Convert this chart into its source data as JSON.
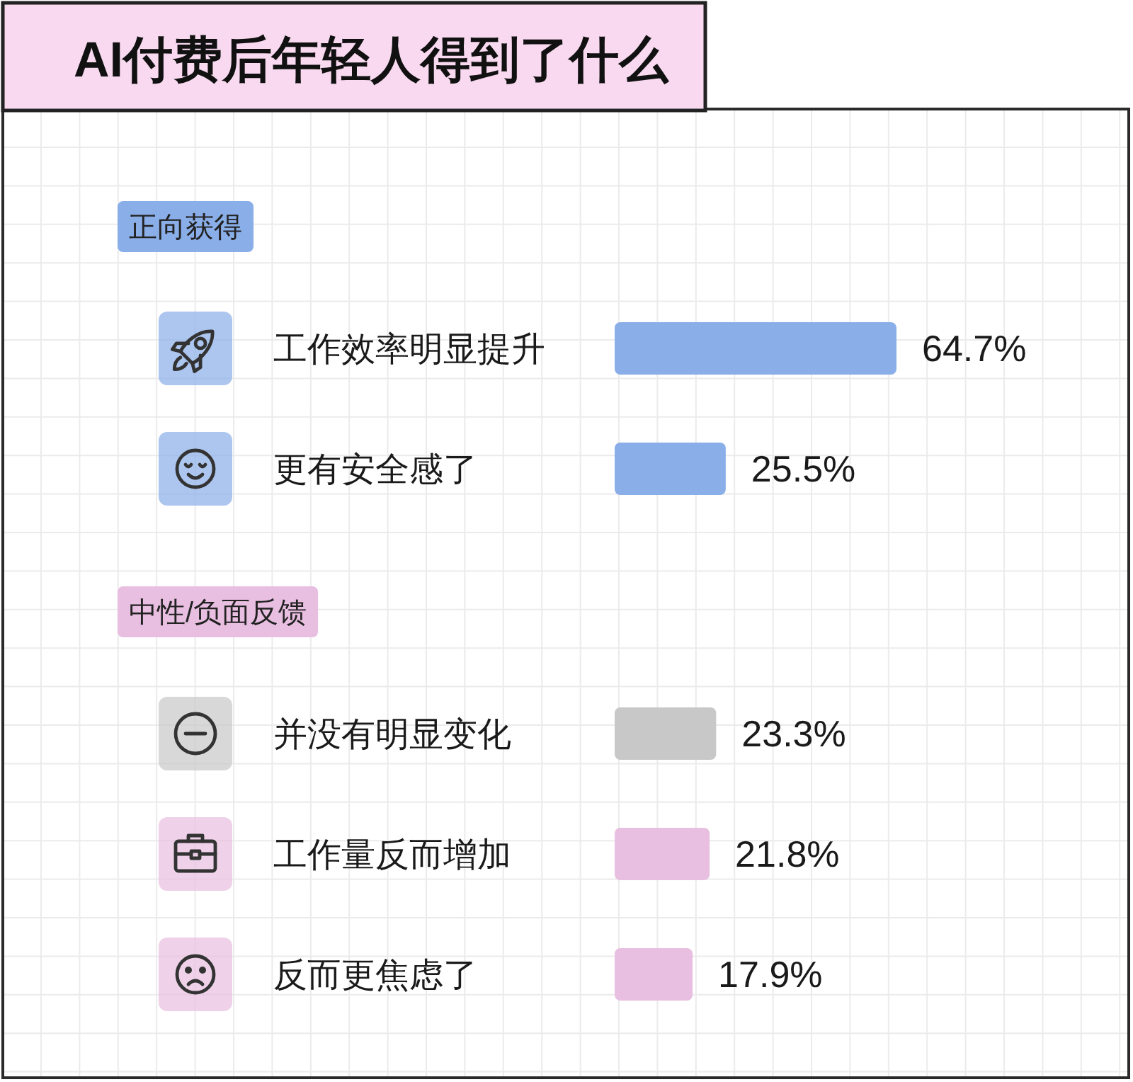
{
  "chart_data": {
    "type": "bar",
    "orientation": "horizontal",
    "title": "AI付费后年轻人得到了什么",
    "categories": [
      "工作效率明显提升",
      "更有安全感了",
      "并没有明显变化",
      "工作量反而增加",
      "反而更焦虑了"
    ],
    "series": [
      {
        "name": "正向获得",
        "color": "#8aaee8",
        "values": [
          64.7,
          25.5,
          null,
          null,
          null
        ],
        "value_labels": [
          "64.7%",
          "25.5%",
          null,
          null,
          null
        ]
      },
      {
        "name": "中性/负面反馈",
        "color": "#e8bfe0",
        "colors": [
          null,
          null,
          "#c8c8c8",
          "#e8bfe0",
          "#e8bfe0"
        ],
        "values": [
          null,
          null,
          23.3,
          21.8,
          17.9
        ],
        "value_labels": [
          null,
          null,
          "23.3%",
          "21.8%",
          "17.9%"
        ]
      }
    ],
    "grid": true,
    "tick_labels": "y"
  }
}
